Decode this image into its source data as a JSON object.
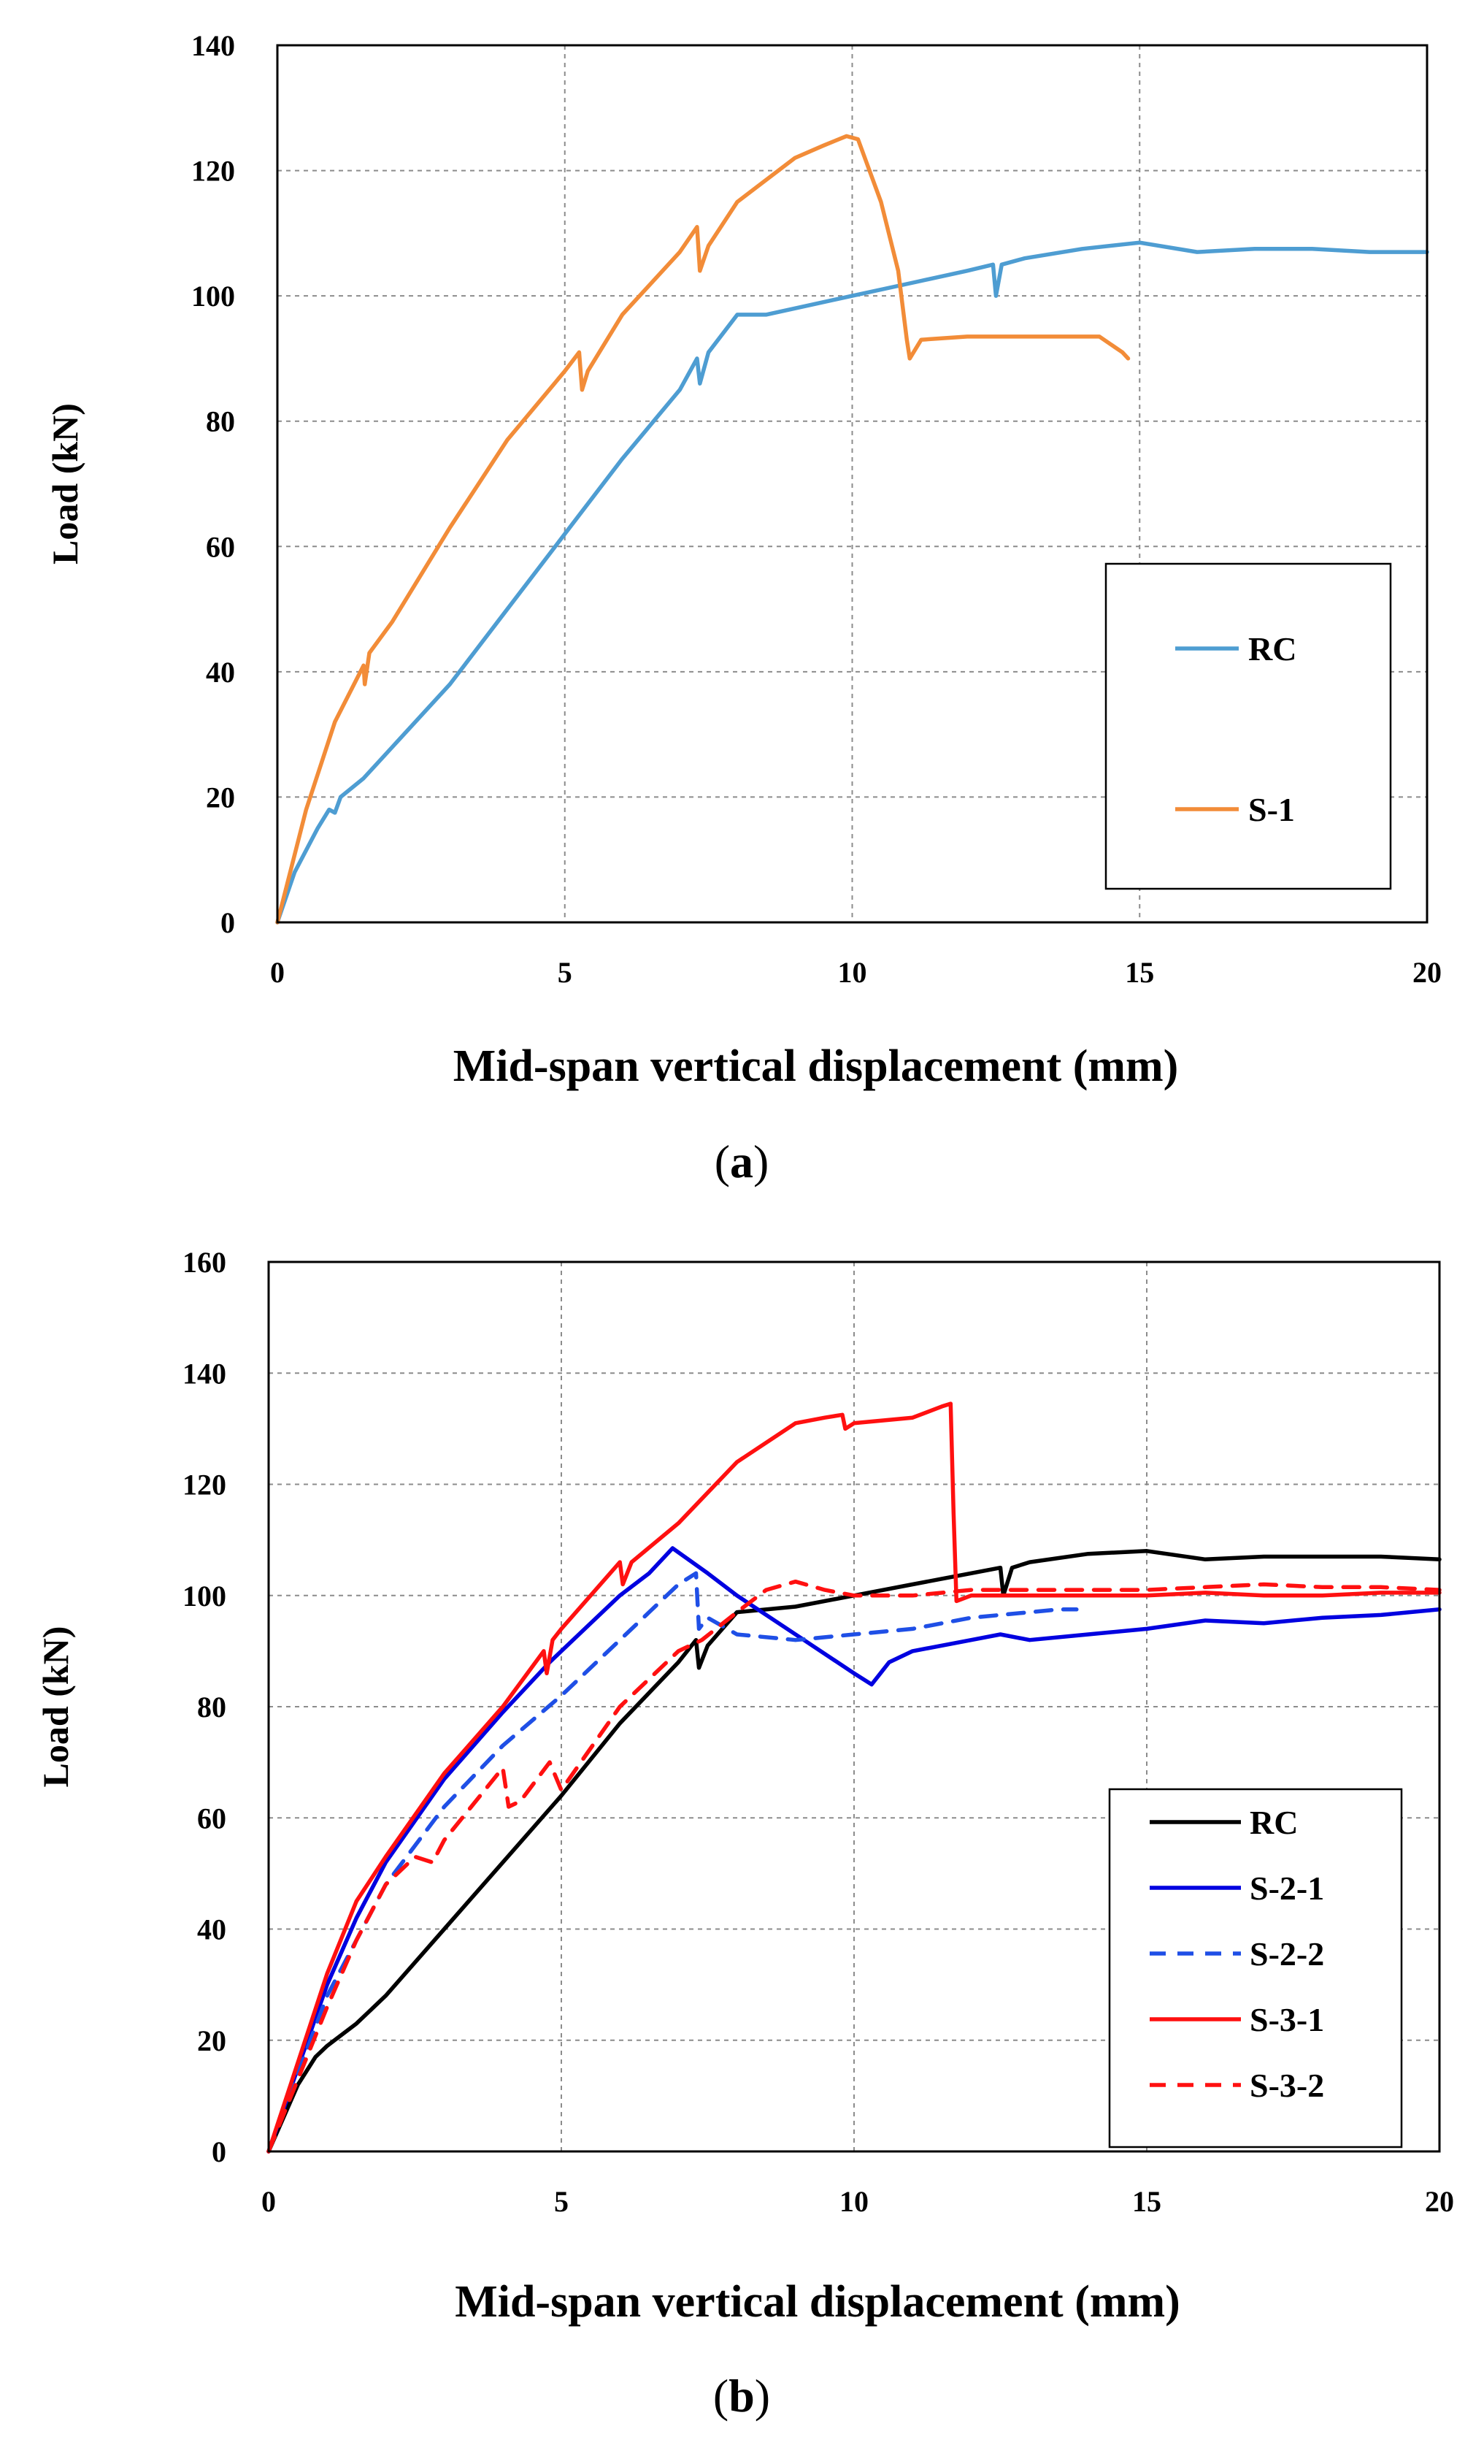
{
  "figure": {
    "panels": [
      {
        "caption_open": "(",
        "caption_letter": "a",
        "caption_close": ")"
      },
      {
        "caption_open": "(",
        "caption_letter": "b",
        "caption_close": ")"
      }
    ]
  },
  "chart_data": [
    {
      "type": "line",
      "title": "",
      "xlabel": "Mid-span vertical displacement (mm)",
      "ylabel": "Load (kN)",
      "xlim": [
        0,
        20
      ],
      "ylim": [
        0,
        140
      ],
      "xticks": [
        0,
        5,
        10,
        15,
        20
      ],
      "yticks": [
        0,
        20,
        40,
        60,
        80,
        100,
        120,
        140
      ],
      "grid": true,
      "legend_position": "right",
      "series": [
        {
          "name": "RC",
          "color": "#4e9dd2",
          "dash": "solid",
          "points": [
            [
              0,
              0
            ],
            [
              0.3,
              8
            ],
            [
              0.7,
              15
            ],
            [
              0.9,
              18
            ],
            [
              1.0,
              17.5
            ],
            [
              1.1,
              20
            ],
            [
              1.5,
              23
            ],
            [
              2.0,
              28
            ],
            [
              3.0,
              38
            ],
            [
              4.0,
              50
            ],
            [
              5.0,
              62
            ],
            [
              6.0,
              74
            ],
            [
              7.0,
              85
            ],
            [
              7.3,
              90
            ],
            [
              7.35,
              86
            ],
            [
              7.5,
              91
            ],
            [
              8.0,
              97
            ],
            [
              8.5,
              97
            ],
            [
              9.0,
              98
            ],
            [
              10.0,
              100
            ],
            [
              11.0,
              102
            ],
            [
              12.0,
              104
            ],
            [
              12.45,
              105
            ],
            [
              12.5,
              100
            ],
            [
              12.6,
              105
            ],
            [
              13.0,
              106
            ],
            [
              14.0,
              107.5
            ],
            [
              15.0,
              108.5
            ],
            [
              16.0,
              107
            ],
            [
              17.0,
              107.5
            ],
            [
              18.0,
              107.5
            ],
            [
              19.0,
              107
            ],
            [
              20.0,
              107
            ]
          ]
        },
        {
          "name": "S-1",
          "color": "#f28c38",
          "dash": "solid",
          "points": [
            [
              0,
              0
            ],
            [
              0.5,
              18
            ],
            [
              1.0,
              32
            ],
            [
              1.5,
              41
            ],
            [
              1.52,
              38
            ],
            [
              1.6,
              43
            ],
            [
              2.0,
              48
            ],
            [
              3.0,
              63
            ],
            [
              4.0,
              77
            ],
            [
              5.0,
              88
            ],
            [
              5.25,
              91
            ],
            [
              5.3,
              85
            ],
            [
              5.4,
              88
            ],
            [
              6.0,
              97
            ],
            [
              7.0,
              107
            ],
            [
              7.3,
              111
            ],
            [
              7.35,
              104
            ],
            [
              7.5,
              108
            ],
            [
              8.0,
              115
            ],
            [
              9.0,
              122
            ],
            [
              9.5,
              124
            ],
            [
              9.9,
              125.5
            ],
            [
              10.1,
              125
            ],
            [
              10.5,
              115
            ],
            [
              10.8,
              104
            ],
            [
              10.95,
              93
            ],
            [
              11.0,
              90
            ],
            [
              11.2,
              93
            ],
            [
              12.0,
              93.5
            ],
            [
              13.0,
              93.5
            ],
            [
              14.0,
              93.5
            ],
            [
              14.3,
              93.5
            ],
            [
              14.7,
              91
            ],
            [
              14.8,
              90
            ]
          ]
        }
      ]
    },
    {
      "type": "line",
      "title": "",
      "xlabel": "Mid-span vertical displacement (mm)",
      "ylabel": "Load (kN)",
      "xlim": [
        0,
        20
      ],
      "ylim": [
        0,
        160
      ],
      "xticks": [
        0,
        5,
        10,
        15,
        20
      ],
      "yticks": [
        0,
        20,
        40,
        60,
        80,
        100,
        120,
        140,
        160
      ],
      "grid": true,
      "legend_position": "bottom-right",
      "series": [
        {
          "name": "RC",
          "color": "#000000",
          "dash": "solid",
          "points": [
            [
              0,
              0
            ],
            [
              0.5,
              12
            ],
            [
              0.8,
              17
            ],
            [
              1.0,
              19
            ],
            [
              1.5,
              23
            ],
            [
              2.0,
              28
            ],
            [
              3.0,
              40
            ],
            [
              4.0,
              52
            ],
            [
              5.0,
              64
            ],
            [
              6.0,
              77
            ],
            [
              7.0,
              88
            ],
            [
              7.3,
              92
            ],
            [
              7.35,
              87
            ],
            [
              7.5,
              91
            ],
            [
              8.0,
              97
            ],
            [
              9.0,
              98
            ],
            [
              10.0,
              100
            ],
            [
              11.0,
              102
            ],
            [
              12.0,
              104
            ],
            [
              12.5,
              105
            ],
            [
              12.55,
              100
            ],
            [
              12.7,
              105
            ],
            [
              13.0,
              106
            ],
            [
              14.0,
              107.5
            ],
            [
              15.0,
              108
            ],
            [
              16.0,
              106.5
            ],
            [
              17.0,
              107
            ],
            [
              18.0,
              107
            ],
            [
              19.0,
              107
            ],
            [
              20.0,
              106.5
            ]
          ]
        },
        {
          "name": "S-2-1",
          "color": "#0000e0",
          "dash": "solid",
          "points": [
            [
              0,
              0
            ],
            [
              0.5,
              15
            ],
            [
              1.0,
              30
            ],
            [
              1.5,
              42
            ],
            [
              2.0,
              52
            ],
            [
              3.0,
              67
            ],
            [
              4.0,
              79
            ],
            [
              4.8,
              88
            ],
            [
              5.0,
              90
            ],
            [
              6.0,
              100
            ],
            [
              6.5,
              104
            ],
            [
              6.9,
              108.5
            ],
            [
              7.5,
              104
            ],
            [
              8.0,
              100
            ],
            [
              9.0,
              93
            ],
            [
              10.0,
              86
            ],
            [
              10.3,
              84
            ],
            [
              10.6,
              88
            ],
            [
              11.0,
              90
            ],
            [
              12.0,
              92
            ],
            [
              12.5,
              93
            ],
            [
              13.0,
              92
            ],
            [
              14.0,
              93
            ],
            [
              15.0,
              94
            ],
            [
              16.0,
              95.5
            ],
            [
              17.0,
              95
            ],
            [
              18.0,
              96
            ],
            [
              19.0,
              96.5
            ],
            [
              20.0,
              97.5
            ]
          ]
        },
        {
          "name": "S-2-2",
          "color": "#1f4fe6",
          "dash": "dashed",
          "points": [
            [
              0,
              0
            ],
            [
              0.5,
              14
            ],
            [
              1.0,
              28
            ],
            [
              1.5,
              38
            ],
            [
              2.0,
              48
            ],
            [
              3.0,
              62
            ],
            [
              4.0,
              73
            ],
            [
              5.0,
              82
            ],
            [
              6.0,
              92
            ],
            [
              7.0,
              102
            ],
            [
              7.3,
              104
            ],
            [
              7.35,
              94
            ],
            [
              7.5,
              96
            ],
            [
              8.0,
              93
            ],
            [
              9.0,
              92
            ],
            [
              10.0,
              93
            ],
            [
              11.0,
              94
            ],
            [
              12.0,
              96
            ],
            [
              13.0,
              97
            ],
            [
              13.5,
              97.5
            ],
            [
              13.8,
              97.5
            ]
          ]
        },
        {
          "name": "S-3-1",
          "color": "#ff1010",
          "dash": "solid",
          "points": [
            [
              0,
              0
            ],
            [
              0.5,
              16
            ],
            [
              1.0,
              32
            ],
            [
              1.5,
              45
            ],
            [
              2.0,
              53
            ],
            [
              3.0,
              68
            ],
            [
              4.0,
              80
            ],
            [
              4.7,
              90
            ],
            [
              4.75,
              86
            ],
            [
              4.85,
              92
            ],
            [
              5.0,
              94
            ],
            [
              6.0,
              106
            ],
            [
              6.05,
              102
            ],
            [
              6.2,
              106
            ],
            [
              7.0,
              113
            ],
            [
              8.0,
              124
            ],
            [
              9.0,
              131
            ],
            [
              9.5,
              132
            ],
            [
              9.8,
              132.5
            ],
            [
              9.85,
              130
            ],
            [
              10.0,
              131
            ],
            [
              11.0,
              132
            ],
            [
              11.5,
              134
            ],
            [
              11.65,
              134.5
            ],
            [
              11.7,
              115
            ],
            [
              11.75,
              99
            ],
            [
              12.0,
              100
            ],
            [
              13.0,
              100
            ],
            [
              14.0,
              100
            ],
            [
              15.0,
              100
            ],
            [
              16.0,
              100.5
            ],
            [
              17.0,
              100
            ],
            [
              18.0,
              100
            ],
            [
              19.0,
              100.5
            ],
            [
              20.0,
              100.5
            ]
          ]
        },
        {
          "name": "S-3-2",
          "color": "#ff1010",
          "dash": "dashed",
          "points": [
            [
              0,
              0
            ],
            [
              0.5,
              13
            ],
            [
              1.0,
              26
            ],
            [
              1.5,
              38
            ],
            [
              2.0,
              48
            ],
            [
              2.5,
              53
            ],
            [
              2.8,
              52
            ],
            [
              3.0,
              56
            ],
            [
              4.0,
              69
            ],
            [
              4.1,
              62
            ],
            [
              4.3,
              63
            ],
            [
              4.8,
              70
            ],
            [
              5.0,
              65
            ],
            [
              5.2,
              68
            ],
            [
              6.0,
              80
            ],
            [
              7.0,
              90
            ],
            [
              7.4,
              92
            ],
            [
              8.0,
              97
            ],
            [
              8.5,
              101
            ],
            [
              9.0,
              102.5
            ],
            [
              9.5,
              101
            ],
            [
              10.0,
              100
            ],
            [
              11.0,
              100
            ],
            [
              12.0,
              101
            ],
            [
              13.0,
              101
            ],
            [
              14.0,
              101
            ],
            [
              15.0,
              101
            ],
            [
              16.0,
              101.5
            ],
            [
              17.0,
              102
            ],
            [
              18.0,
              101.5
            ],
            [
              19.0,
              101.5
            ],
            [
              20.0,
              101
            ]
          ]
        }
      ]
    }
  ]
}
